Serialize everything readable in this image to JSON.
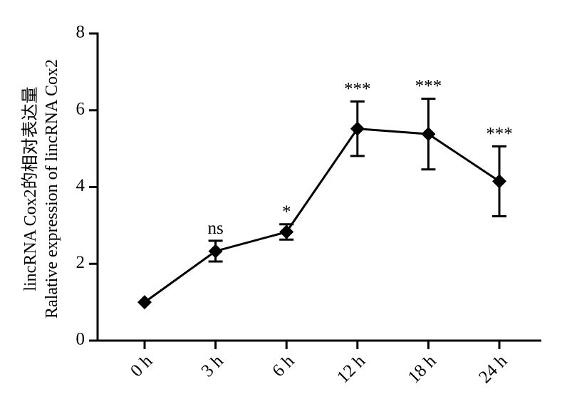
{
  "chart_data": {
    "type": "line",
    "y_label_lines": [
      "lincRNA Cox2的相对表达量",
      "Ralative expression of lincRNA Cox2"
    ],
    "categories": [
      "0 h",
      "3 h",
      "6 h",
      "12 h",
      "18 h",
      "24 h"
    ],
    "values": [
      1.0,
      2.33,
      2.83,
      5.52,
      5.38,
      4.15
    ],
    "errors": [
      0,
      0.27,
      0.2,
      0.71,
      0.92,
      0.91
    ],
    "significance": [
      null,
      "ns",
      "*",
      "***",
      "***",
      "***"
    ],
    "color": "#000000",
    "ylim": [
      0,
      8
    ],
    "yticks": [
      0,
      2,
      4,
      6,
      8
    ],
    "grid": false
  }
}
